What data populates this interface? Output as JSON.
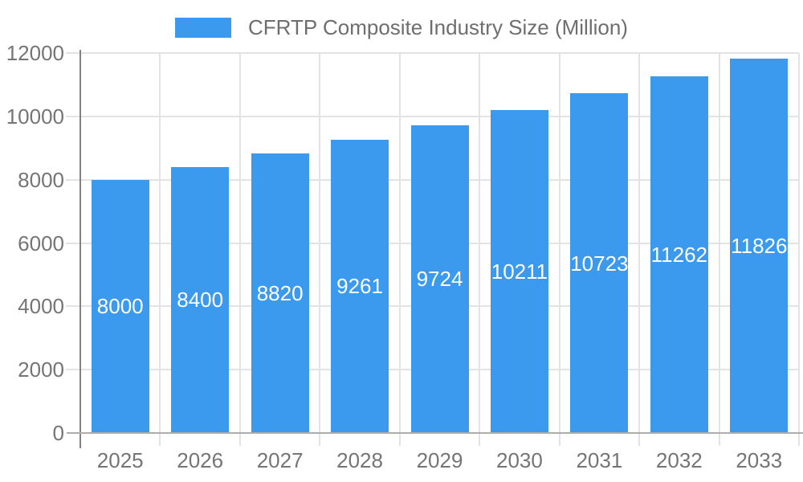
{
  "chart_data": {
    "type": "bar",
    "title": "",
    "legend": "CFRTP Composite Industry Size (Million)",
    "legend_position": "top-center",
    "categories": [
      "2025",
      "2026",
      "2027",
      "2028",
      "2029",
      "2030",
      "2031",
      "2032",
      "2033"
    ],
    "values": [
      8000,
      8400,
      8820,
      9261,
      9724,
      10211,
      10723,
      11262,
      11826
    ],
    "xlabel": "",
    "ylabel": "",
    "ylim": [
      0,
      12000
    ],
    "yticks": [
      0,
      2000,
      4000,
      6000,
      8000,
      10000,
      12000
    ],
    "grid": true,
    "bar_labels_visible": true,
    "colors": {
      "bar": "#3b99ee",
      "bar_label": "#ffffff",
      "gridline": "#e3e3e3",
      "y_axis_line": "#828282",
      "x_axis_line": "#adadad",
      "tick_label": "#757575",
      "legend_text": "#6e6e6e",
      "background": "#ffffff"
    }
  }
}
